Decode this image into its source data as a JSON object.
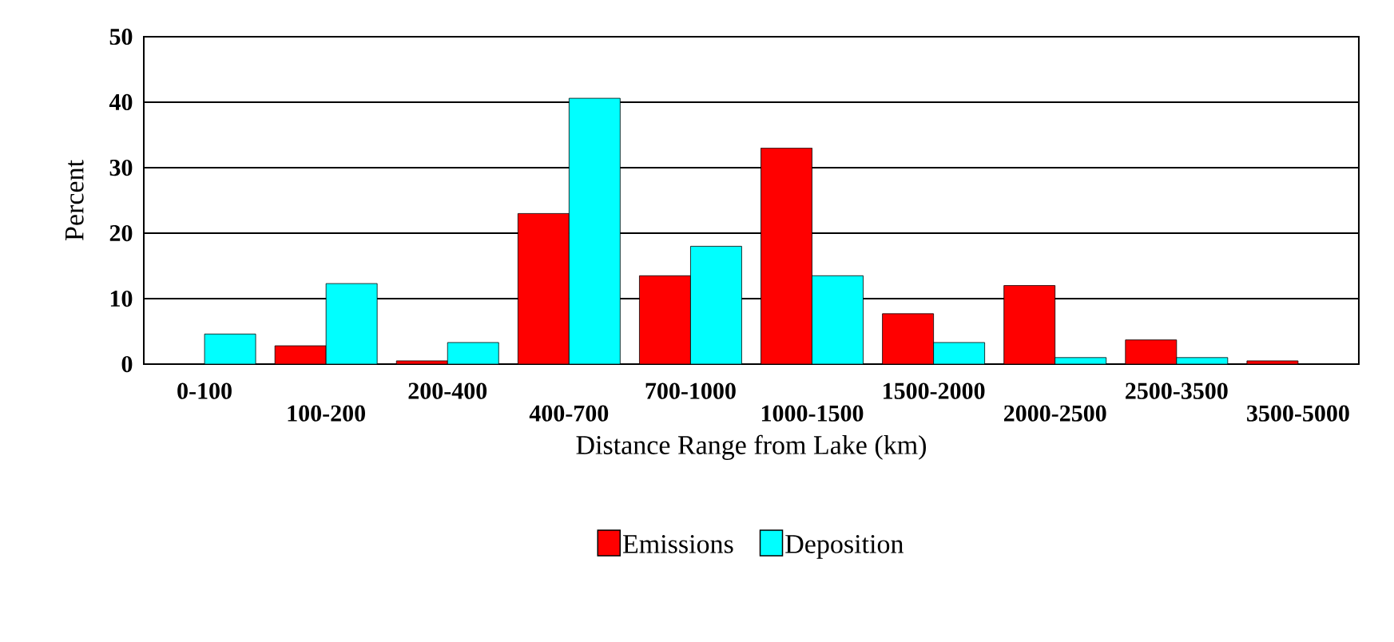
{
  "chart_data": {
    "type": "bar",
    "xlabel": "Distance Range from Lake (km)",
    "ylabel": "Percent",
    "categories": [
      "0-100",
      "100-200",
      "200-400",
      "400-700",
      "700-1000",
      "1000-1500",
      "1500-2000",
      "2000-2500",
      "2500-3500",
      "3500-5000"
    ],
    "series": [
      {
        "name": "Emissions",
        "color": "#ff0000",
        "values": [
          0,
          2.8,
          0.5,
          23,
          13.5,
          33,
          7.7,
          12,
          3.7,
          0.5
        ]
      },
      {
        "name": "Deposition",
        "color": "#00ffff",
        "values": [
          4.6,
          12.3,
          3.3,
          40.6,
          18,
          13.5,
          3.3,
          1,
          1,
          0
        ]
      }
    ],
    "ylim": [
      0,
      50
    ],
    "yticks": [
      0,
      10,
      20,
      30,
      40,
      50
    ],
    "grid": "y",
    "legend": "bottom"
  }
}
